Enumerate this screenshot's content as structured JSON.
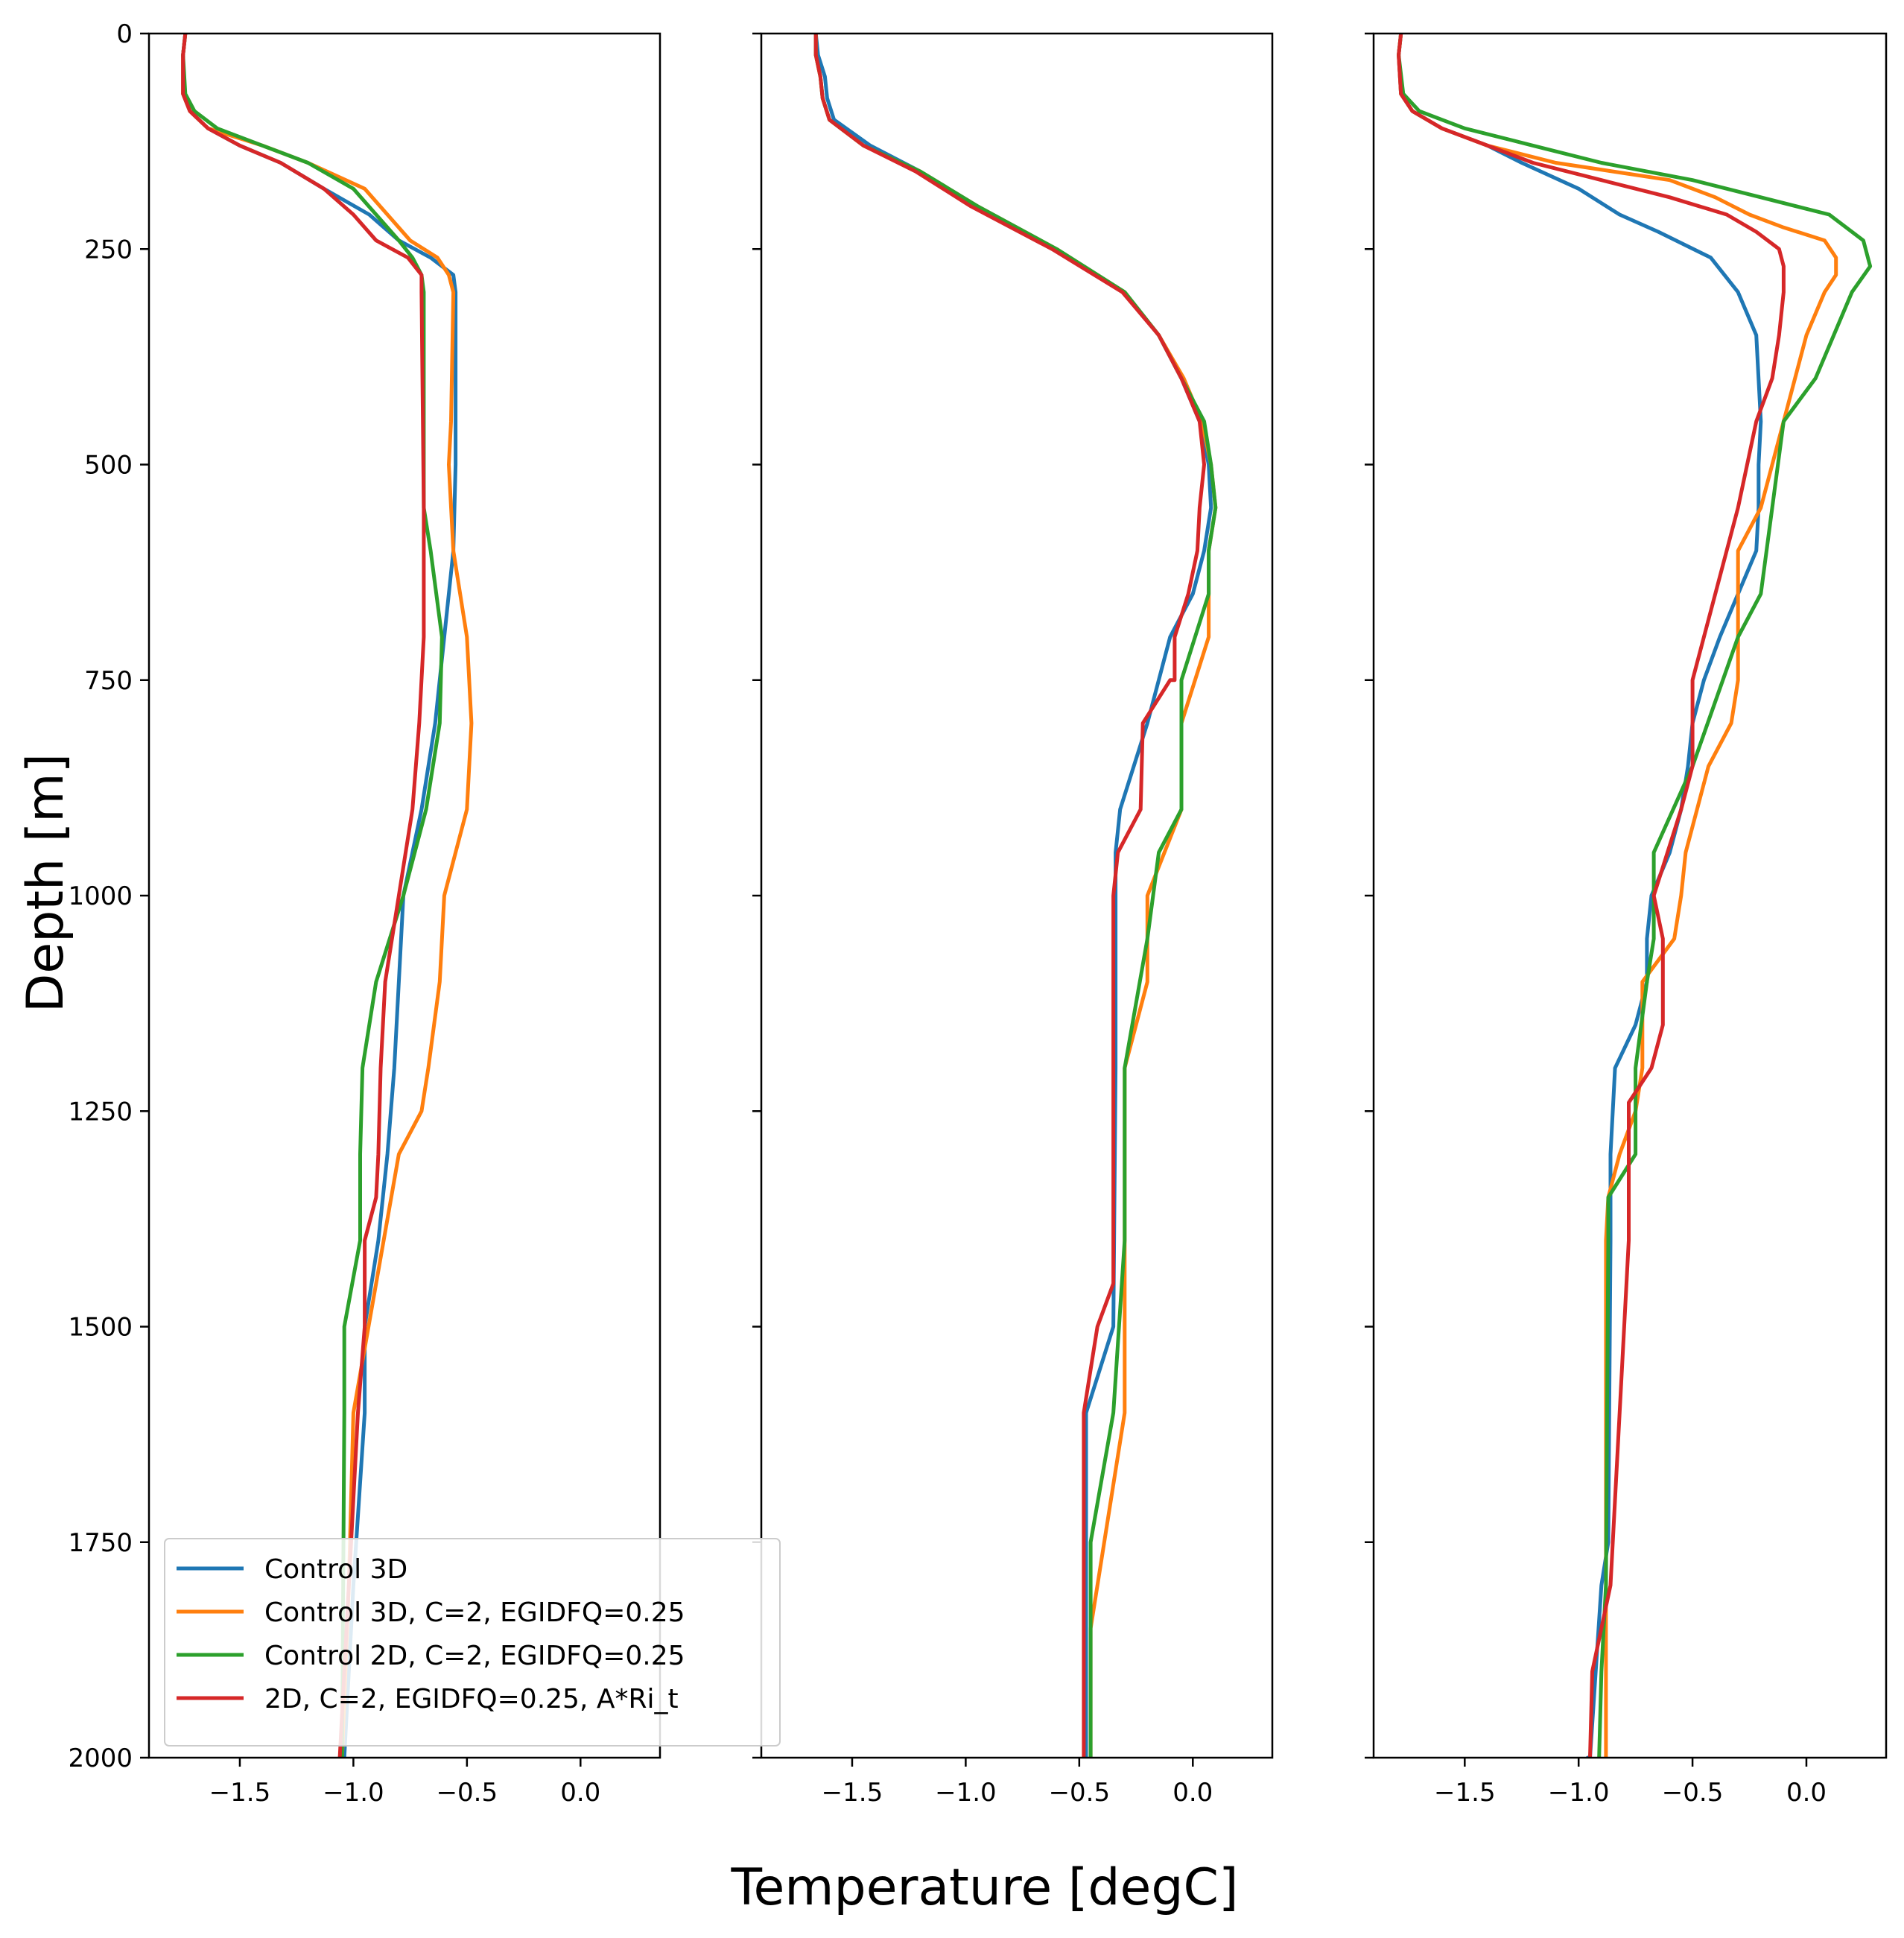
{
  "chart_data": {
    "type": "line",
    "x_label": "Temperature [degC]",
    "y_label": "Depth [m]",
    "xlim": [
      -1.9,
      0.35
    ],
    "ylim": [
      0,
      2000
    ],
    "y_inverted": true,
    "shared_y": true,
    "x_ticks": [
      -1.5,
      -1.0,
      -0.5,
      0.0
    ],
    "x_tick_labels": [
      "−1.5",
      "−1.0",
      "−0.5",
      "0.0"
    ],
    "y_ticks": [
      0,
      250,
      500,
      750,
      1000,
      1250,
      1500,
      1750,
      2000
    ],
    "y_tick_labels": [
      "0",
      "250",
      "500",
      "750",
      "1000",
      "1250",
      "1500",
      "1750",
      "2000"
    ],
    "legend": {
      "location": "lower-left",
      "panel": 0
    },
    "series_meta": [
      {
        "name": "Control 3D",
        "color": "#1f77b4"
      },
      {
        "name": "Control 3D, C=2, EGIDFQ=0.25",
        "color": "#ff7f0e"
      },
      {
        "name": "Control 2D, C=2, EGIDFQ=0.25",
        "color": "#2ca02c"
      },
      {
        "name": "2D, C=2, EGIDFQ=0.25, A*Ri_t",
        "color": "#d62728"
      }
    ],
    "panels": [
      {
        "series": [
          {
            "name": "Control 3D",
            "color": "#1f77b4",
            "x": [
              -1.74,
              -1.75,
              -1.75,
              -1.72,
              -1.64,
              -1.5,
              -1.32,
              -1.13,
              -0.93,
              -0.8,
              -0.66,
              -0.56,
              -0.55,
              -0.55,
              -0.56,
              -0.6,
              -0.64,
              -0.7,
              -0.78,
              -0.8,
              -0.82,
              -0.85,
              -0.89,
              -0.95,
              -0.95,
              -1.0,
              -1.04
            ],
            "y": [
              0,
              25,
              70,
              90,
              110,
              130,
              150,
              180,
              210,
              240,
              260,
              280,
              300,
              500,
              600,
              700,
              800,
              900,
              1000,
              1100,
              1200,
              1300,
              1400,
              1500,
              1600,
              1800,
              2000
            ]
          },
          {
            "name": "Control 3D, C=2, EGIDFQ=0.25",
            "color": "#ff7f0e",
            "x": [
              -1.74,
              -1.75,
              -1.75,
              -1.72,
              -1.64,
              -1.4,
              -1.2,
              -0.95,
              -0.85,
              -0.75,
              -0.63,
              -0.58,
              -0.56,
              -0.57,
              -0.58,
              -0.56,
              -0.5,
              -0.48,
              -0.5,
              -0.6,
              -0.62,
              -0.67,
              -0.7,
              -0.8,
              -0.9,
              -1.0,
              -1.02,
              -1.05
            ],
            "y": [
              0,
              25,
              70,
              90,
              110,
              130,
              150,
              180,
              210,
              240,
              260,
              280,
              300,
              450,
              500,
              600,
              700,
              800,
              900,
              1000,
              1100,
              1200,
              1250,
              1300,
              1450,
              1600,
              1800,
              2000
            ]
          },
          {
            "name": "Control 2D, C=2, EGIDFQ=0.25",
            "color": "#2ca02c",
            "x": [
              -1.74,
              -1.75,
              -1.74,
              -1.7,
              -1.6,
              -1.4,
              -1.2,
              -1.0,
              -0.9,
              -0.8,
              -0.74,
              -0.7,
              -0.69,
              -0.69,
              -0.66,
              -0.61,
              -0.62,
              -0.68,
              -0.78,
              -0.9,
              -0.96,
              -0.97,
              -0.97,
              -1.04,
              -1.04,
              -1.05
            ],
            "y": [
              0,
              25,
              70,
              90,
              110,
              130,
              150,
              180,
              210,
              240,
              260,
              280,
              300,
              550,
              600,
              700,
              800,
              900,
              1000,
              1100,
              1200,
              1300,
              1400,
              1500,
              1600,
              2000
            ]
          },
          {
            "name": "2D, C=2, EGIDFQ=0.25, A*Ri_t",
            "color": "#d62728",
            "x": [
              -1.74,
              -1.75,
              -1.75,
              -1.72,
              -1.64,
              -1.5,
              -1.32,
              -1.13,
              -1.0,
              -0.9,
              -0.76,
              -0.7,
              -0.7,
              -0.69,
              -0.69,
              -0.71,
              -0.74,
              -0.8,
              -0.86,
              -0.88,
              -0.89,
              -0.9,
              -0.95,
              -0.95,
              -0.98,
              -1.02,
              -1.06
            ],
            "y": [
              0,
              25,
              70,
              90,
              110,
              130,
              150,
              180,
              210,
              240,
              260,
              280,
              300,
              550,
              700,
              800,
              900,
              1000,
              1100,
              1200,
              1300,
              1350,
              1400,
              1500,
              1600,
              1800,
              2000
            ]
          }
        ]
      },
      {
        "series": [
          {
            "name": "Control 3D",
            "color": "#1f77b4",
            "x": [
              -1.66,
              -1.65,
              -1.62,
              -1.61,
              -1.58,
              -1.42,
              -1.2,
              -0.95,
              -0.6,
              -0.3,
              -0.15,
              -0.05,
              0.03,
              0.07,
              0.08,
              0.05,
              0.0,
              -0.1,
              -0.2,
              -0.32,
              -0.34,
              -0.34,
              -0.34,
              -0.35,
              -0.47,
              -0.47,
              -0.47
            ],
            "y": [
              0,
              25,
              50,
              75,
              100,
              130,
              160,
              200,
              250,
              300,
              350,
              400,
              450,
              500,
              550,
              600,
              650,
              700,
              800,
              900,
              950,
              1000,
              1200,
              1500,
              1600,
              1800,
              2000
            ]
          },
          {
            "name": "Control 3D, C=2, EGIDFQ=0.25",
            "color": "#ff7f0e",
            "x": [
              -1.66,
              -1.66,
              -1.64,
              -1.63,
              -1.6,
              -1.45,
              -1.2,
              -0.95,
              -0.6,
              -0.3,
              -0.15,
              -0.04,
              0.04,
              0.08,
              0.1,
              0.07,
              0.07,
              -0.05,
              -0.05,
              -0.2,
              -0.2,
              -0.3,
              -0.3,
              -0.45,
              -0.45
            ],
            "y": [
              0,
              25,
              50,
              75,
              100,
              130,
              160,
              200,
              250,
              300,
              350,
              400,
              450,
              500,
              550,
              600,
              700,
              800,
              900,
              1000,
              1100,
              1200,
              1600,
              1850,
              2000
            ]
          },
          {
            "name": "Control 2D, C=2, EGIDFQ=0.25",
            "color": "#2ca02c",
            "x": [
              -1.66,
              -1.66,
              -1.64,
              -1.63,
              -1.6,
              -1.45,
              -1.2,
              -0.95,
              -0.6,
              -0.3,
              -0.15,
              -0.05,
              0.05,
              0.08,
              0.1,
              0.07,
              0.07,
              -0.05,
              -0.05,
              -0.15,
              -0.2,
              -0.3,
              -0.3,
              -0.35,
              -0.45,
              -0.45
            ],
            "y": [
              0,
              25,
              50,
              75,
              100,
              130,
              160,
              200,
              250,
              300,
              350,
              400,
              450,
              500,
              550,
              600,
              650,
              750,
              900,
              950,
              1050,
              1200,
              1400,
              1600,
              1750,
              2000
            ]
          },
          {
            "name": "2D, C=2, EGIDFQ=0.25, A*Ri_t",
            "color": "#d62728",
            "x": [
              -1.66,
              -1.66,
              -1.64,
              -1.63,
              -1.6,
              -1.45,
              -1.22,
              -0.98,
              -0.62,
              -0.31,
              -0.15,
              -0.05,
              0.03,
              0.05,
              0.03,
              0.02,
              -0.02,
              -0.08,
              -0.08,
              -0.1,
              -0.22,
              -0.23,
              -0.33,
              -0.35,
              -0.35,
              -0.42,
              -0.48,
              -0.48
            ],
            "y": [
              0,
              25,
              50,
              75,
              100,
              130,
              160,
              200,
              250,
              300,
              350,
              400,
              450,
              500,
              550,
              600,
              650,
              700,
              750,
              750,
              800,
              900,
              950,
              1000,
              1450,
              1500,
              1600,
              2000
            ]
          }
        ]
      },
      {
        "series": [
          {
            "name": "Control 3D",
            "color": "#1f77b4",
            "x": [
              -1.78,
              -1.79,
              -1.78,
              -1.73,
              -1.6,
              -1.4,
              -1.25,
              -1.0,
              -0.82,
              -0.65,
              -0.42,
              -0.3,
              -0.22,
              -0.2,
              -0.21,
              -0.21,
              -0.22,
              -0.3,
              -0.38,
              -0.45,
              -0.5,
              -0.52,
              -0.55,
              -0.6,
              -0.68,
              -0.7,
              -0.7,
              -0.75,
              -0.84,
              -0.86,
              -0.86,
              -0.87,
              -0.9,
              -0.95,
              -0.96
            ],
            "y": [
              0,
              25,
              70,
              90,
              110,
              130,
              150,
              180,
              210,
              230,
              260,
              300,
              350,
              450,
              500,
              550,
              600,
              650,
              700,
              750,
              800,
              850,
              900,
              950,
              1000,
              1050,
              1100,
              1150,
              1200,
              1300,
              1400,
              1750,
              1800,
              2000,
              2000
            ]
          },
          {
            "name": "Control 3D, C=2, EGIDFQ=0.25",
            "color": "#ff7f0e",
            "x": [
              -1.78,
              -1.79,
              -1.78,
              -1.73,
              -1.6,
              -1.4,
              -1.1,
              -0.6,
              -0.4,
              -0.25,
              -0.1,
              0.08,
              0.13,
              0.13,
              0.08,
              0.0,
              -0.05,
              -0.1,
              -0.15,
              -0.2,
              -0.3,
              -0.3,
              -0.3,
              -0.33,
              -0.43,
              -0.53,
              -0.55,
              -0.58,
              -0.72,
              -0.72,
              -0.75,
              -0.82,
              -0.87,
              -0.88,
              -0.88
            ],
            "y": [
              0,
              25,
              70,
              90,
              110,
              130,
              150,
              170,
              190,
              210,
              225,
              240,
              260,
              280,
              300,
              350,
              400,
              450,
              500,
              550,
              600,
              700,
              750,
              800,
              850,
              950,
              1000,
              1050,
              1100,
              1200,
              1250,
              1300,
              1350,
              1400,
              2000
            ]
          },
          {
            "name": "Control 2D, C=2, EGIDFQ=0.25",
            "color": "#2ca02c",
            "x": [
              -1.78,
              -1.79,
              -1.77,
              -1.7,
              -1.5,
              -1.2,
              -0.9,
              -0.5,
              -0.2,
              0.1,
              0.25,
              0.28,
              0.2,
              0.12,
              0.04,
              -0.1,
              -0.15,
              -0.2,
              -0.3,
              -0.5,
              -0.67,
              -0.67,
              -0.7,
              -0.75,
              -0.75,
              -0.87,
              -0.87,
              -0.88,
              -0.9,
              -0.91
            ],
            "y": [
              0,
              25,
              70,
              90,
              110,
              130,
              150,
              170,
              190,
              210,
              240,
              270,
              300,
              350,
              400,
              450,
              550,
              650,
              700,
              850,
              950,
              1050,
              1100,
              1200,
              1300,
              1350,
              1400,
              1800,
              1900,
              2000
            ]
          },
          {
            "name": "2D, C=2, EGIDFQ=0.25, A*Ri_t",
            "color": "#d62728",
            "x": [
              -1.78,
              -1.79,
              -1.78,
              -1.73,
              -1.6,
              -1.4,
              -1.2,
              -0.9,
              -0.6,
              -0.35,
              -0.22,
              -0.12,
              -0.1,
              -0.1,
              -0.12,
              -0.15,
              -0.22,
              -0.3,
              -0.45,
              -0.5,
              -0.5,
              -0.5,
              -0.55,
              -0.61,
              -0.67,
              -0.63,
              -0.63,
              -0.63,
              -0.68,
              -0.78,
              -0.78,
              -0.78,
              -0.86,
              -0.94,
              -0.95
            ],
            "y": [
              0,
              25,
              70,
              90,
              110,
              130,
              150,
              170,
              190,
              210,
              230,
              250,
              270,
              300,
              350,
              400,
              450,
              550,
              700,
              750,
              800,
              850,
              900,
              950,
              1000,
              1050,
              1100,
              1150,
              1200,
              1240,
              1350,
              1400,
              1800,
              1900,
              2000
            ]
          }
        ]
      }
    ]
  }
}
